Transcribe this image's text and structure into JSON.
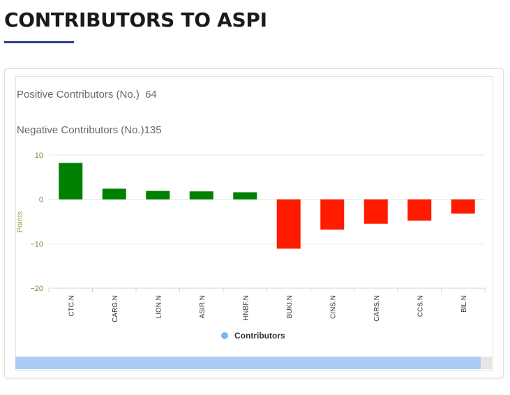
{
  "page": {
    "title": "CONTRIBUTORS TO ASPI"
  },
  "stats": {
    "positive_label": "Positive Contributors (No.)",
    "positive_value": "64",
    "negative_label": "Negative Contributors (No.)",
    "negative_value": "135"
  },
  "colors": {
    "positive": "#008000",
    "negative": "#ff1a00",
    "legend_marker": "#7cb5ec",
    "scroll_thumb": "#aaccf5",
    "tick_label": "#6b8f3a",
    "axis_title": "#8ab04a"
  },
  "chart_data": {
    "type": "bar",
    "title": "",
    "xlabel": "",
    "ylabel": "Points",
    "ylim": [
      -20,
      10
    ],
    "yticks": [
      10,
      0,
      -10,
      -20
    ],
    "ytick_labels": [
      "10",
      "0",
      "−10",
      "−20"
    ],
    "grid": true,
    "legend_position": "bottom-center",
    "categories": [
      "CTC.N",
      "CARG.N",
      "LION.N",
      "ASIR.N",
      "HNBF.N",
      "BUKI.N",
      "CINS.N",
      "CARS.N",
      "CCS.N",
      "BIL.N"
    ],
    "series": [
      {
        "name": "Contributors",
        "values": [
          8.2,
          2.4,
          1.9,
          1.8,
          1.6,
          -11.1,
          -6.8,
          -5.5,
          -4.8,
          -3.2
        ]
      }
    ]
  }
}
